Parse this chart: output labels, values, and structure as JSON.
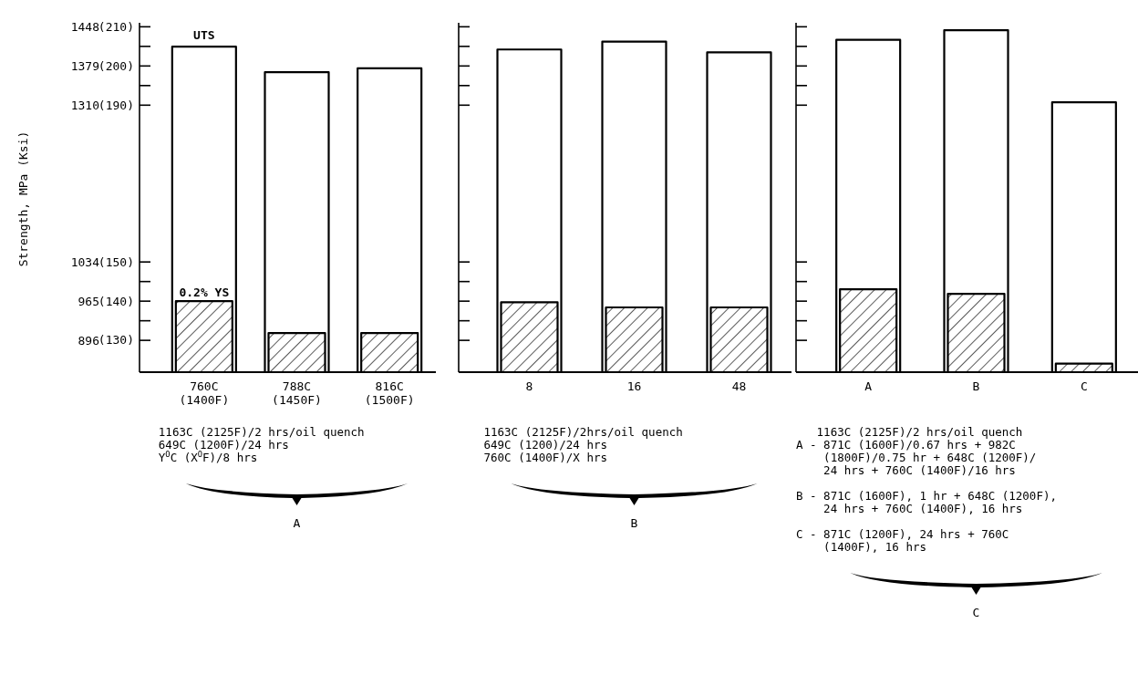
{
  "chart_data": [
    {
      "type": "bar",
      "ylabel": "Strength, MPa (Ksi)",
      "xlabel": "A",
      "categories": [
        "760C\n(1400F)",
        "788C\n(1450F)",
        "816C\n(1500F)"
      ],
      "series": [
        {
          "name": "UTS",
          "color": "#ffffff",
          "values": [
            1413,
            1368,
            1375
          ]
        },
        {
          "name": "0.2% YS",
          "color": "#000000",
          "values": [
            965,
            909,
            909
          ]
        }
      ],
      "ylim": [
        840,
        1455
      ],
      "yticks": [
        896,
        {
          "value": 930.5,
          "label": null
        },
        965,
        {
          "value": 999.5,
          "label": null
        },
        1034,
        1310,
        {
          "value": 1344.5,
          "label": null
        },
        1379,
        {
          "value": 1413.5,
          "label": null
        },
        1448
      ],
      "y2lim": [
        121.83,
        211.03
      ],
      "y2ticks": [
        {
          "value": 130,
          "label": "(130)"
        },
        {
          "value": 140,
          "label": "(140)"
        },
        {
          "value": 150,
          "label": "(150)"
        },
        {
          "value": 190,
          "label": "(190)"
        },
        {
          "value": 200,
          "label": "(200)"
        },
        {
          "value": 210,
          "label": "(210)"
        }
      ],
      "annotations": [
        "1163C (2125F)/2 hrs/oil quench\n649C (1200F)/24 hrs\nY$^{O}$C (X$^{O}$F)/8 hrs"
      ]
    },
    {
      "type": "bar",
      "xlabel": "B",
      "tick_labels": "x",
      "categories": [
        "8",
        "16",
        "48"
      ],
      "series": [
        {
          "color": "#ffffff",
          "values": [
            1408,
            1422,
            1403
          ]
        },
        {
          "color": "#000000",
          "values": [
            963,
            954,
            954
          ]
        }
      ],
      "ylim": [
        840,
        1455
      ],
      "yticks": [
        896,
        {
          "value": 930.5,
          "label": null
        },
        965,
        {
          "value": 999.5,
          "label": null
        },
        1034,
        1310,
        {
          "value": 1344.5,
          "label": null
        },
        1379,
        {
          "value": 1413.5,
          "label": null
        },
        1448
      ],
      "annotations": [
        "1163C (2125F)/2hrs/oil quench\n649C (1200)/24 hrs\n760C (1400F)/X hrs"
      ]
    },
    {
      "type": "bar",
      "xlabel": "C",
      "tick_labels": "x",
      "categories": [
        "A",
        "B",
        "C"
      ],
      "series": [
        {
          "color": "#ffffff",
          "values": [
            1425,
            1442,
            1315
          ]
        },
        {
          "color": "#000000",
          "values": [
            986,
            978,
            855
          ]
        }
      ],
      "ylim": [
        840,
        1455
      ],
      "yticks": [
        896,
        {
          "value": 930.5,
          "label": null
        },
        965,
        {
          "value": 999.5,
          "label": null
        },
        1034,
        1310,
        {
          "value": 1344.5,
          "label": null
        },
        1379,
        {
          "value": 1413.5,
          "label": null
        },
        1448
      ],
      "annotations": [
        "   1163C (2125F)/2 hrs/oil quench\nA - 871C (1600F)/0.67 hrs + 982C\n    (1800F)/0.75 hr + 648C (1200F)/\n    24 hrs + 760C (1400F)/16 hrs\n\nB - 871C (1600F), 1 hr + 648C (1200F),\n    24 hrs + 760C (1400F), 16 hrs\n\nC - 871C (1200F), 24 hrs + 760C\n    (1400F), 16 hrs"
      ]
    }
  ]
}
